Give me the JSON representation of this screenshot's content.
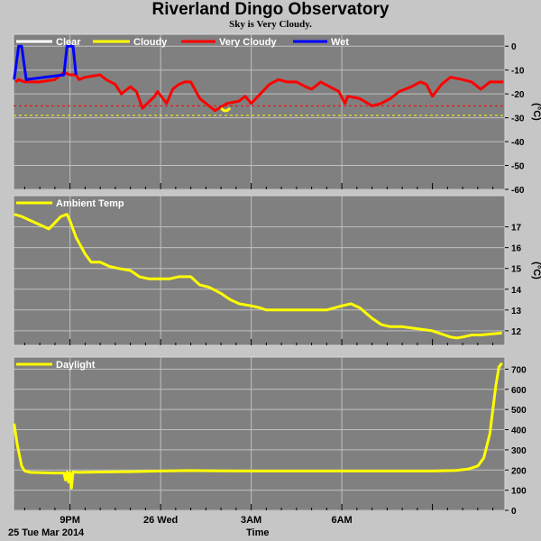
{
  "title": "Riverland Dingo Observatory",
  "subtitle": "Sky is Very Cloudy.",
  "date_label": "25 Tue Mar 2014",
  "x_axis_title": "Time",
  "x_ticks": [
    "9PM",
    "26 Wed",
    "3AM",
    "6AM"
  ],
  "colors": {
    "background": "#c6c6c6",
    "plot_bg": "#808080",
    "clear": "#ffffff",
    "cloudy": "#ffff00",
    "very_cloudy": "#ff0000",
    "wet": "#0000ff",
    "threshold_cloudy": "#ffff00",
    "threshold_very_cloudy": "#ff0000"
  },
  "chart_data": [
    {
      "type": "line",
      "panel": "sky",
      "x_unit": "hours since 6PM",
      "xlim": [
        -0.87,
        15.4
      ],
      "ylabel": "(°C)",
      "ylim": [
        -60,
        5
      ],
      "yticks": [
        0,
        -10,
        -20,
        -30,
        -40,
        -50,
        -60
      ],
      "legend": [
        "Clear",
        "Cloudy",
        "Very Cloudy",
        "Wet"
      ],
      "thresholds": [
        {
          "legend": "Very Cloudy",
          "value": -25
        },
        {
          "legend": "Cloudy",
          "value": -29
        }
      ],
      "series": [
        {
          "name": "Very Cloudy",
          "x": [
            -0.8,
            -0.7,
            -0.5,
            0.0,
            0.5,
            0.8,
            1.0,
            1.2,
            1.3,
            1.5,
            2.0,
            2.2,
            2.5,
            2.7,
            3.0,
            3.2,
            3.4,
            3.8,
            3.9,
            4.2,
            4.4,
            4.6,
            4.8,
            5.0,
            5.3,
            5.5,
            5.8,
            6.2,
            6.6,
            6.8,
            7.0,
            7.3,
            7.6,
            7.9,
            8.2,
            8.5,
            8.8,
            9.0,
            9.3,
            9.6,
            9.9,
            10.1,
            10.2,
            10.6,
            11.0,
            11.3,
            11.6,
            11.9,
            12.3,
            12.6,
            12.8,
            13.0,
            13.3,
            13.6,
            14.0,
            14.3,
            14.6,
            14.9,
            15.2,
            15.35
          ],
          "y": [
            -15,
            -14,
            -15,
            -15,
            -14,
            -11,
            -12,
            -12,
            -14,
            -13,
            -12,
            -14,
            -16,
            -20,
            -17,
            -19,
            -26,
            -21,
            -19,
            -24,
            -18,
            -16,
            -15,
            -15,
            -22,
            -24,
            -27,
            -24,
            -23,
            -21,
            -24,
            -20,
            -16,
            -14,
            -15,
            -15,
            -17,
            -18,
            -15,
            -17,
            -19,
            -24,
            -21,
            -22,
            -25,
            -24,
            -22,
            -19,
            -17,
            -15,
            -16,
            -21,
            -16,
            -13,
            -14,
            -15,
            -18,
            -15,
            -15,
            -15
          ]
        },
        {
          "name": "Cloudy",
          "x": [
            6.0,
            6.1,
            6.2,
            6.3
          ],
          "y": [
            -26,
            -27,
            -27,
            -26
          ]
        },
        {
          "name": "Wet",
          "x": [
            -0.85,
            -0.7,
            -0.6,
            -0.45,
            0.8,
            0.9,
            1.0,
            1.1,
            1.2
          ],
          "y": [
            -14,
            0,
            0,
            -14,
            -12,
            0,
            0,
            0,
            -12
          ]
        }
      ]
    },
    {
      "type": "line",
      "panel": "ambient",
      "x_unit": "hours since 6PM",
      "xlim": [
        -0.87,
        15.4
      ],
      "ylabel": "(°C)",
      "ylim": [
        11.3,
        18.5
      ],
      "yticks": [
        17,
        16,
        15,
        14,
        13,
        12
      ],
      "legend": [
        "Ambient Temp"
      ],
      "series": [
        {
          "name": "Ambient Temp",
          "x": [
            -0.85,
            -0.6,
            -0.3,
            0.0,
            0.3,
            0.7,
            0.9,
            1.0,
            1.2,
            1.5,
            1.7,
            2.0,
            2.3,
            2.6,
            3.0,
            3.3,
            3.6,
            4.0,
            4.3,
            4.6,
            5.0,
            5.3,
            5.6,
            6.0,
            6.3,
            6.6,
            7.0,
            7.3,
            7.5,
            8.0,
            8.5,
            9.0,
            9.5,
            10.0,
            10.3,
            10.6,
            11.0,
            11.3,
            11.6,
            12.0,
            12.5,
            13.0,
            13.4,
            13.6,
            13.8,
            14.0,
            14.3,
            14.6,
            15.0,
            15.3
          ],
          "y": [
            17.6,
            17.5,
            17.3,
            17.1,
            16.9,
            17.5,
            17.6,
            17.3,
            16.5,
            15.7,
            15.3,
            15.3,
            15.1,
            15.0,
            14.9,
            14.6,
            14.5,
            14.5,
            14.5,
            14.6,
            14.6,
            14.2,
            14.1,
            13.8,
            13.5,
            13.3,
            13.2,
            13.1,
            13.0,
            13.0,
            13.0,
            13.0,
            13.0,
            13.2,
            13.3,
            13.1,
            12.6,
            12.3,
            12.2,
            12.2,
            12.1,
            12.0,
            11.8,
            11.7,
            11.65,
            11.7,
            11.8,
            11.8,
            11.85,
            11.9
          ]
        }
      ]
    },
    {
      "type": "line",
      "panel": "daylight",
      "x_unit": "hours since 6PM",
      "xlim": [
        -0.87,
        15.4
      ],
      "ylim": [
        0,
        760
      ],
      "yticks": [
        700,
        600,
        500,
        400,
        300,
        200,
        100,
        0
      ],
      "legend": [
        "Daylight"
      ],
      "series": [
        {
          "name": "Daylight",
          "x": [
            -0.85,
            -0.75,
            -0.6,
            -0.5,
            -0.3,
            0.5,
            0.8,
            0.85,
            0.9,
            0.95,
            1.0,
            1.05,
            1.1,
            1.3,
            2.0,
            3.0,
            4.0,
            5.0,
            6.0,
            7.0,
            8.0,
            9.0,
            10.0,
            11.0,
            12.0,
            13.0,
            13.8,
            14.2,
            14.5,
            14.7,
            14.9,
            15.0,
            15.1,
            15.2,
            15.3
          ],
          "y": [
            430,
            330,
            220,
            195,
            188,
            185,
            185,
            150,
            190,
            140,
            188,
            110,
            190,
            188,
            190,
            192,
            195,
            197,
            196,
            195,
            195,
            195,
            195,
            195,
            195,
            195,
            198,
            205,
            220,
            260,
            380,
            500,
            620,
            710,
            730
          ]
        }
      ]
    }
  ]
}
